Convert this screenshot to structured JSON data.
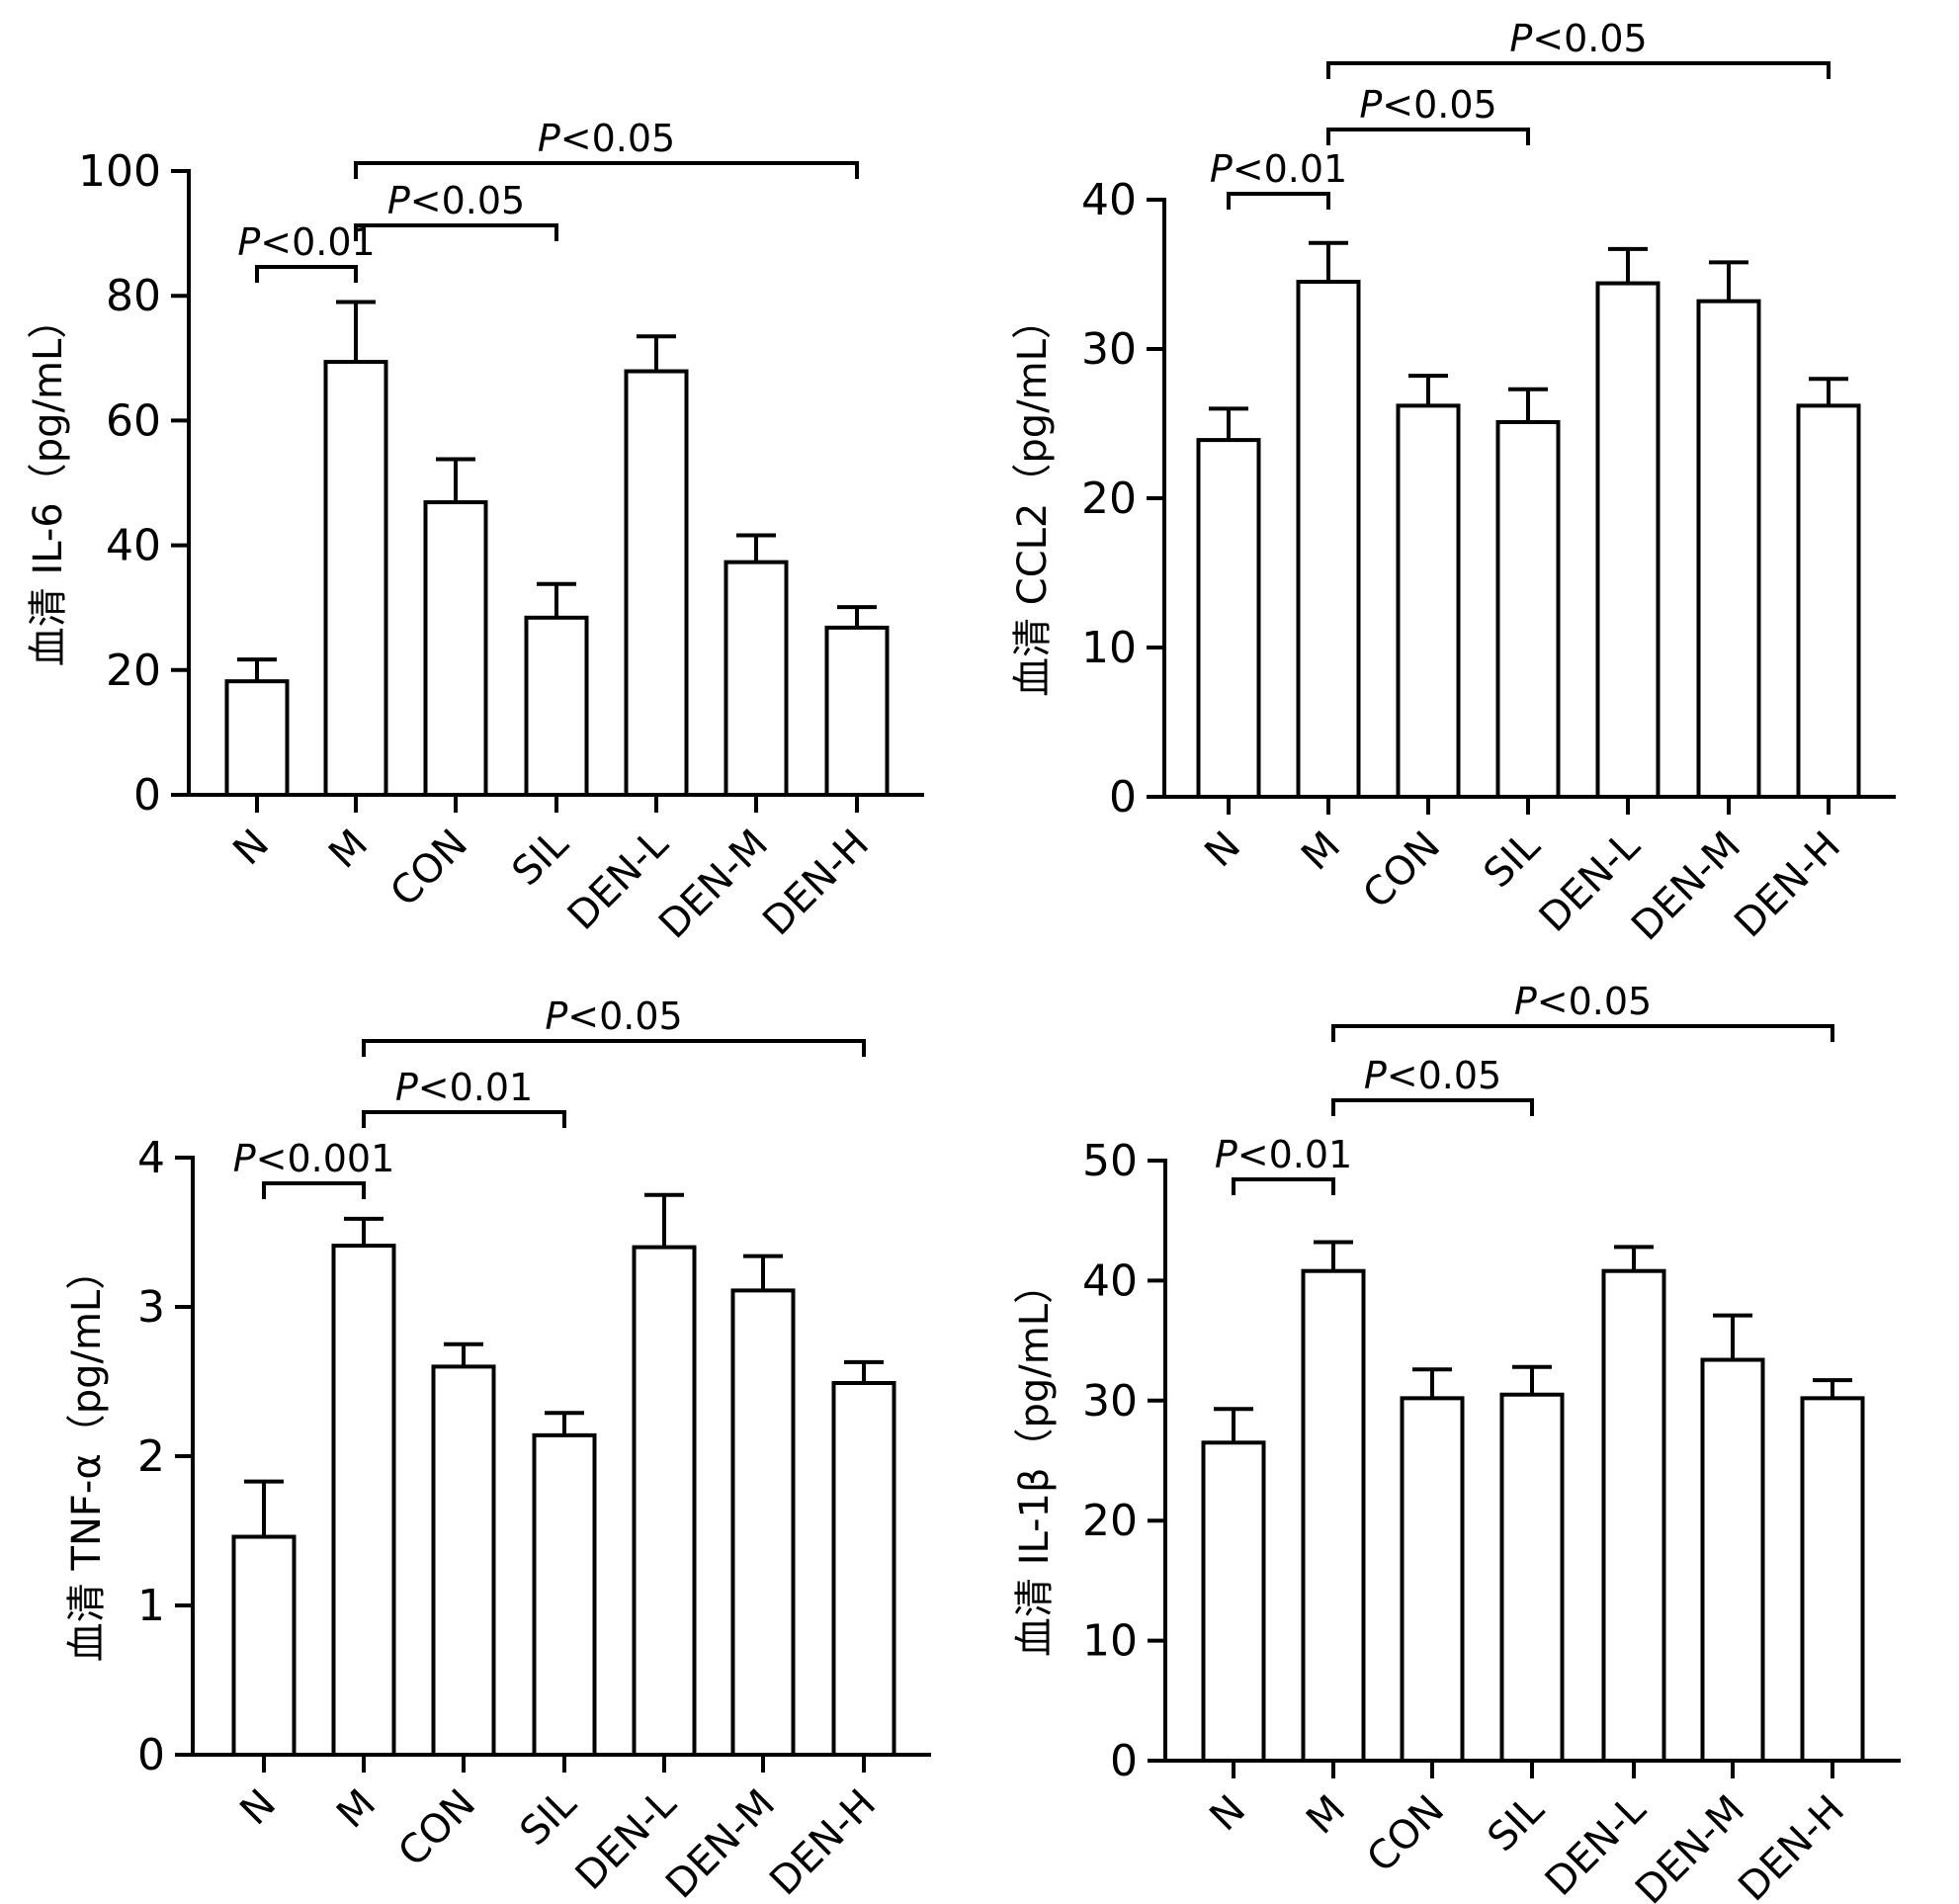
{
  "chart_data": [
    {
      "type": "bar",
      "panel": "top-left",
      "title": "",
      "xlabel": "",
      "ylabel": "血清 IL-6（pg/mL）",
      "ylim": [
        0,
        100
      ],
      "yticks": [
        0,
        20,
        40,
        60,
        80,
        100
      ],
      "categories": [
        "N",
        "M",
        "CON",
        "SIL",
        "DEN-L",
        "DEN-M",
        "DEN-H"
      ],
      "values": [
        18.2,
        69.4,
        46.9,
        28.4,
        67.9,
        37.3,
        26.8
      ],
      "error_upper": [
        21.7,
        79.0,
        53.8,
        33.8,
        73.5,
        41.6,
        30.1
      ],
      "grid": false,
      "significance": [
        {
          "from": "N",
          "to": "M",
          "label": "P<0.01"
        },
        {
          "from": "M",
          "to": "SIL",
          "label": "P<0.05"
        },
        {
          "from": "M",
          "to": "DEN-H",
          "label": "P<0.05"
        }
      ]
    },
    {
      "type": "bar",
      "panel": "top-right",
      "title": "",
      "xlabel": "",
      "ylabel": "血清 CCL2（pg/mL）",
      "ylim": [
        0,
        40
      ],
      "yticks": [
        0,
        10,
        20,
        30,
        40
      ],
      "categories": [
        "N",
        "M",
        "CON",
        "SIL",
        "DEN-L",
        "DEN-M",
        "DEN-H"
      ],
      "values": [
        23.9,
        34.5,
        26.2,
        25.1,
        34.4,
        33.2,
        26.2
      ],
      "error_upper": [
        26.0,
        37.1,
        28.2,
        27.3,
        36.7,
        35.8,
        28.0
      ],
      "grid": false,
      "significance": [
        {
          "from": "N",
          "to": "M",
          "label": "P<0.01"
        },
        {
          "from": "M",
          "to": "SIL",
          "label": "P<0.05"
        },
        {
          "from": "M",
          "to": "DEN-H",
          "label": "P<0.05"
        }
      ]
    },
    {
      "type": "bar",
      "panel": "bottom-left",
      "title": "",
      "xlabel": "",
      "ylabel": "血清 TNF-α（pg/mL）",
      "ylim": [
        0,
        4
      ],
      "yticks": [
        0,
        1,
        2,
        3,
        4
      ],
      "categories": [
        "N",
        "M",
        "CON",
        "SIL",
        "DEN-L",
        "DEN-M",
        "DEN-H"
      ],
      "values": [
        1.46,
        3.41,
        2.6,
        2.14,
        3.4,
        3.11,
        2.49
      ],
      "error_upper": [
        1.83,
        3.59,
        2.75,
        2.29,
        3.75,
        3.34,
        2.63
      ],
      "grid": false,
      "significance": [
        {
          "from": "N",
          "to": "M",
          "label": "P<0.001"
        },
        {
          "from": "M",
          "to": "SIL",
          "label": "P<0.01"
        },
        {
          "from": "M",
          "to": "DEN-H",
          "label": "P<0.05"
        }
      ]
    },
    {
      "type": "bar",
      "panel": "bottom-right",
      "title": "",
      "xlabel": "",
      "ylabel": "血清 IL-1β（pg/mL）",
      "ylim": [
        0,
        50
      ],
      "yticks": [
        0,
        10,
        20,
        30,
        40,
        50
      ],
      "categories": [
        "N",
        "M",
        "CON",
        "SIL",
        "DEN-L",
        "DEN-M",
        "DEN-H"
      ],
      "values": [
        26.5,
        40.8,
        30.2,
        30.5,
        40.8,
        33.4,
        30.2
      ],
      "error_upper": [
        29.3,
        43.2,
        32.6,
        32.8,
        42.8,
        37.1,
        31.7
      ],
      "grid": false,
      "significance": [
        {
          "from": "N",
          "to": "M",
          "label": "P<0.01"
        },
        {
          "from": "M",
          "to": "SIL",
          "label": "P<0.05"
        },
        {
          "from": "M",
          "to": "DEN-H",
          "label": "P<0.05"
        }
      ]
    }
  ]
}
